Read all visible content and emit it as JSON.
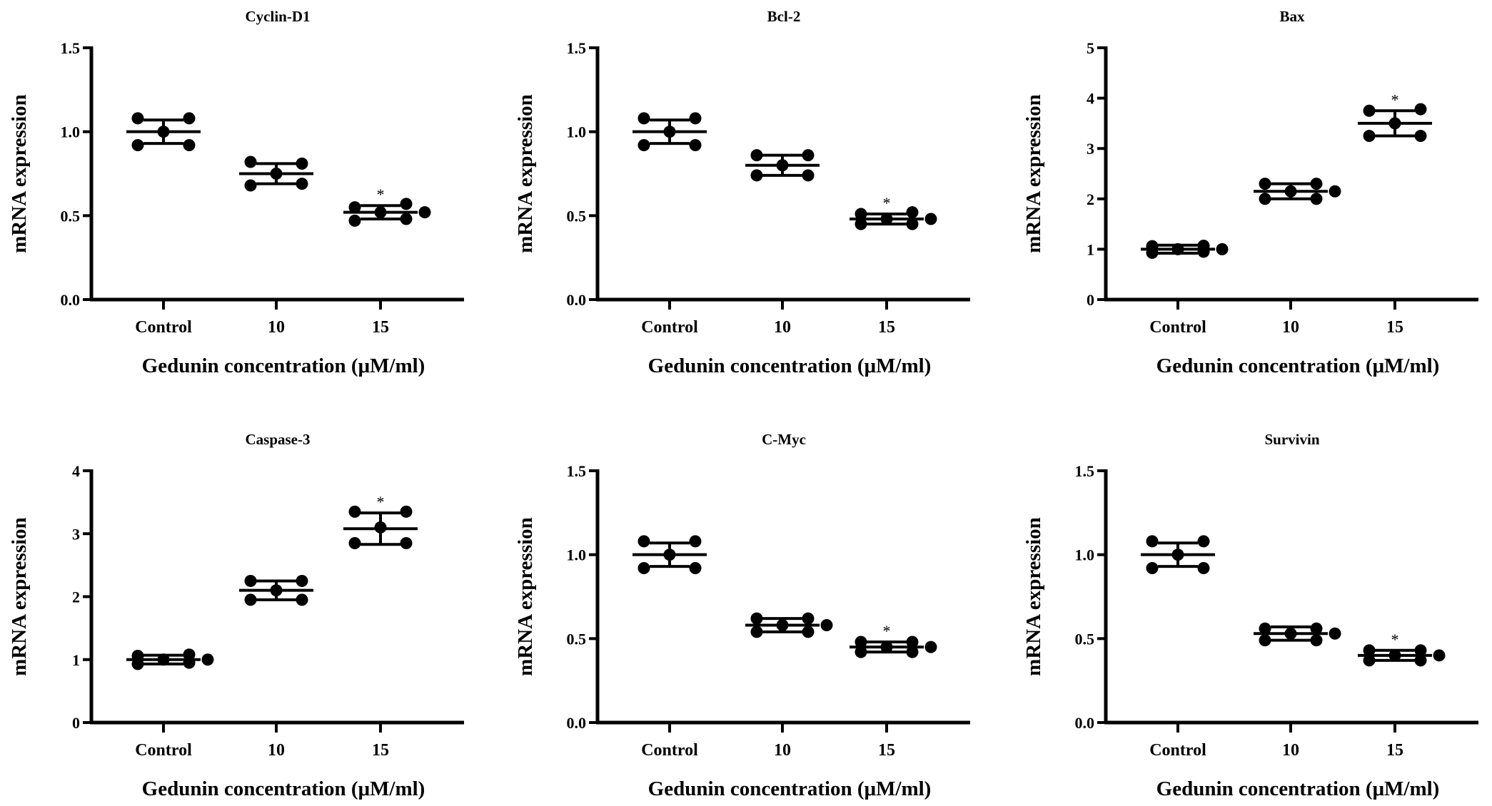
{
  "chart_data": [
    {
      "type": "scatter",
      "title": "Cyclin-D1",
      "xlabel": "Gedunin concentration (μM/ml)",
      "ylabel": "mRNA expression",
      "categories": [
        "Control",
        "10",
        "15"
      ],
      "ylim": [
        0,
        1.5
      ],
      "yticks": [
        "0.0",
        "0.5",
        "1.0",
        "1.5"
      ],
      "ytick_values": [
        0,
        0.5,
        1.0,
        1.5
      ],
      "groups": [
        {
          "points": [
            1.08,
            0.92,
            1.0,
            1.08,
            0.92
          ],
          "mean": 1.0,
          "sd": 0.07,
          "annotation": ""
        },
        {
          "points": [
            0.82,
            0.68,
            0.75,
            0.81,
            0.69
          ],
          "mean": 0.75,
          "sd": 0.06,
          "annotation": ""
        },
        {
          "points": [
            0.55,
            0.47,
            0.52,
            0.57,
            0.48,
            0.52
          ],
          "mean": 0.52,
          "sd": 0.04,
          "annotation": "*"
        }
      ]
    },
    {
      "type": "scatter",
      "title": "Bcl-2",
      "xlabel": "Gedunin concentration (μM/ml)",
      "ylabel": "mRNA expression",
      "categories": [
        "Control",
        "10",
        "15"
      ],
      "ylim": [
        0,
        1.5
      ],
      "yticks": [
        "0.0",
        "0.5",
        "1.0",
        "1.5"
      ],
      "ytick_values": [
        0,
        0.5,
        1.0,
        1.5
      ],
      "groups": [
        {
          "points": [
            1.08,
            0.92,
            1.0,
            1.08,
            0.92
          ],
          "mean": 1.0,
          "sd": 0.07,
          "annotation": ""
        },
        {
          "points": [
            0.86,
            0.74,
            0.8,
            0.86,
            0.74
          ],
          "mean": 0.8,
          "sd": 0.06,
          "annotation": ""
        },
        {
          "points": [
            0.51,
            0.45,
            0.48,
            0.52,
            0.45,
            0.48
          ],
          "mean": 0.48,
          "sd": 0.03,
          "annotation": "*"
        }
      ]
    },
    {
      "type": "scatter",
      "title": "Bax",
      "xlabel": "Gedunin concentration (μM/ml)",
      "ylabel": "mRNA expression",
      "categories": [
        "Control",
        "10",
        "15"
      ],
      "ylim": [
        0,
        5
      ],
      "yticks": [
        "0",
        "1",
        "2",
        "3",
        "4",
        "5"
      ],
      "ytick_values": [
        0,
        1,
        2,
        3,
        4,
        5
      ],
      "groups": [
        {
          "points": [
            1.06,
            0.93,
            1.0,
            1.07,
            0.95,
            1.0
          ],
          "mean": 1.0,
          "sd": 0.08,
          "annotation": ""
        },
        {
          "points": [
            2.3,
            2.0,
            2.15,
            2.3,
            2.0,
            2.15
          ],
          "mean": 2.15,
          "sd": 0.15,
          "annotation": ""
        },
        {
          "points": [
            3.75,
            3.25,
            3.5,
            3.78,
            3.25
          ],
          "mean": 3.5,
          "sd": 0.25,
          "annotation": "*"
        }
      ]
    },
    {
      "type": "scatter",
      "title": "Caspase-3",
      "xlabel": "Gedunin concentration (μM/ml)",
      "ylabel": "mRNA expression",
      "categories": [
        "Control",
        "10",
        "15"
      ],
      "ylim": [
        0,
        4
      ],
      "yticks": [
        "0",
        "1",
        "2",
        "3",
        "4"
      ],
      "ytick_values": [
        0,
        1,
        2,
        3,
        4
      ],
      "groups": [
        {
          "points": [
            1.06,
            0.93,
            1.0,
            1.08,
            0.95,
            1.0
          ],
          "mean": 1.0,
          "sd": 0.07,
          "annotation": ""
        },
        {
          "points": [
            2.25,
            1.95,
            2.1,
            2.25,
            1.95
          ],
          "mean": 2.1,
          "sd": 0.15,
          "annotation": ""
        },
        {
          "points": [
            3.35,
            2.85,
            3.1,
            3.35,
            2.85
          ],
          "mean": 3.08,
          "sd": 0.25,
          "annotation": "*"
        }
      ]
    },
    {
      "type": "scatter",
      "title": "C-Myc",
      "xlabel": "Gedunin concentration (μM/ml)",
      "ylabel": "mRNA expression",
      "categories": [
        "Control",
        "10",
        "15"
      ],
      "ylim": [
        0,
        1.5
      ],
      "yticks": [
        "0.0",
        "0.5",
        "1.0",
        "1.5"
      ],
      "ytick_values": [
        0,
        0.5,
        1.0,
        1.5
      ],
      "groups": [
        {
          "points": [
            1.08,
            0.92,
            1.0,
            1.08,
            0.92
          ],
          "mean": 1.0,
          "sd": 0.07,
          "annotation": ""
        },
        {
          "points": [
            0.62,
            0.54,
            0.58,
            0.62,
            0.54,
            0.58
          ],
          "mean": 0.58,
          "sd": 0.04,
          "annotation": ""
        },
        {
          "points": [
            0.48,
            0.42,
            0.45,
            0.48,
            0.42,
            0.45
          ],
          "mean": 0.45,
          "sd": 0.03,
          "annotation": "*"
        }
      ]
    },
    {
      "type": "scatter",
      "title": "Survivin",
      "xlabel": "Gedunin concentration (μM/ml)",
      "ylabel": "mRNA expression",
      "categories": [
        "Control",
        "10",
        "15"
      ],
      "ylim": [
        0,
        1.5
      ],
      "yticks": [
        "0.0",
        "0.5",
        "1.0",
        "1.5"
      ],
      "ytick_values": [
        0,
        0.5,
        1.0,
        1.5
      ],
      "groups": [
        {
          "points": [
            1.08,
            0.92,
            1.0,
            1.08,
            0.92
          ],
          "mean": 1.0,
          "sd": 0.07,
          "annotation": ""
        },
        {
          "points": [
            0.56,
            0.49,
            0.53,
            0.56,
            0.49,
            0.53
          ],
          "mean": 0.53,
          "sd": 0.04,
          "annotation": ""
        },
        {
          "points": [
            0.43,
            0.37,
            0.4,
            0.43,
            0.37,
            0.4
          ],
          "mean": 0.4,
          "sd": 0.03,
          "annotation": "*"
        }
      ]
    }
  ]
}
